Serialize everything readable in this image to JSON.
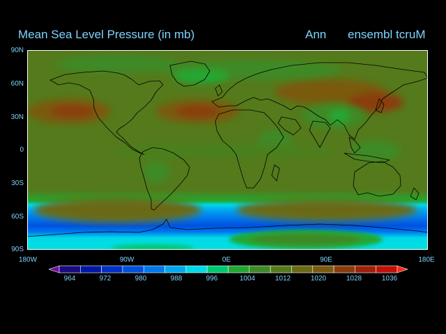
{
  "title": "Mean Sea Level Pressure (in mb)",
  "season": "Ann",
  "model": "ensembl tcruM",
  "lat_labels": [
    "90N",
    "60N",
    "30N",
    "0",
    "30S",
    "60S",
    "90S"
  ],
  "lon_labels": [
    "180W",
    "90W",
    "0E",
    "90E",
    "180E"
  ],
  "colorbar": {
    "labels": [
      "964",
      "972",
      "980",
      "988",
      "996",
      "1004",
      "1012",
      "1020",
      "1028",
      "1036"
    ],
    "colors": [
      "#1a0a80",
      "#0018a8",
      "#0030c8",
      "#0050e0",
      "#0078ee",
      "#00a8f0",
      "#00d8e8",
      "#00c870",
      "#22a830",
      "#3d8a26",
      "#547a1c",
      "#6a6a14",
      "#7a5a10",
      "#8a3c0c",
      "#a0200a",
      "#c01008"
    ],
    "arrow_left": "#7010a0",
    "arrow_right": "#ff2a10"
  },
  "colors": {
    "background": "#000000",
    "text": "#7fd4ff",
    "base_field": "#547a1c",
    "coast": "#000000"
  }
}
